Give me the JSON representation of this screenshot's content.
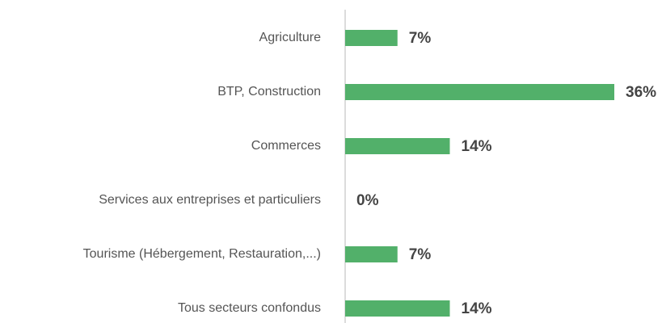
{
  "chart_data": {
    "type": "bar",
    "orientation": "horizontal",
    "categories": [
      "Agriculture",
      "BTP, Construction",
      "Commerces",
      "Services aux entreprises et particuliers",
      "Tourisme (Hébergement, Restauration,...)",
      "Tous secteurs confondus"
    ],
    "values": [
      7,
      36,
      14,
      0,
      7,
      14
    ],
    "value_labels": [
      "7%",
      "36%",
      "14%",
      "0%",
      "7%",
      "14%"
    ],
    "color": "#52b06a"
  }
}
